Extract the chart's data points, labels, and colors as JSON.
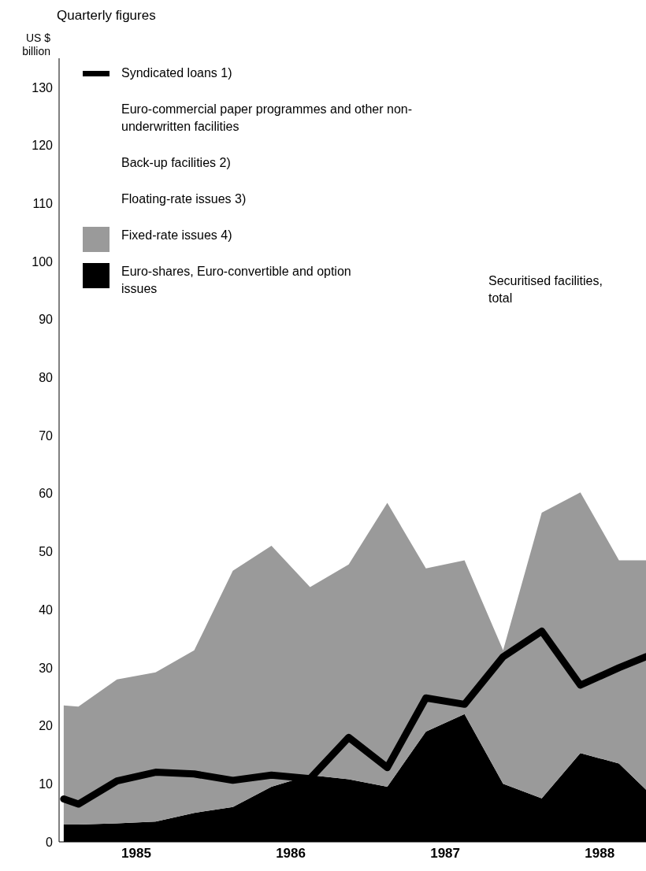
{
  "chart_data": {
    "type": "area",
    "stacked": true,
    "title": "Quarterly figures",
    "ylabel": "US $ billion",
    "x": [
      1985.03,
      1985.125,
      1985.375,
      1985.625,
      1985.875,
      1986.125,
      1986.375,
      1986.625,
      1986.875,
      1987.125,
      1987.375,
      1987.625,
      1987.875,
      1988.125,
      1988.375,
      1988.625,
      1988.8
    ],
    "xlim": [
      1985,
      1988.8
    ],
    "xticks": [
      {
        "value": 1985.5,
        "label": "1985"
      },
      {
        "value": 1986.5,
        "label": "1986"
      },
      {
        "value": 1987.5,
        "label": "1987"
      },
      {
        "value": 1988.5,
        "label": "1988"
      }
    ],
    "ylim": [
      0,
      135
    ],
    "yticks": [
      0,
      10,
      20,
      30,
      40,
      50,
      60,
      70,
      80,
      90,
      100,
      110,
      120,
      130
    ],
    "series": [
      {
        "name": "Syndicated loans 1)",
        "type": "line",
        "color": "#000000",
        "values": [
          7.4,
          6.5,
          10.5,
          12,
          11.7,
          10.6,
          11.5,
          10.9,
          18,
          12.8,
          24.8,
          23.7,
          31.9,
          36.3,
          27,
          30,
          31.9
        ]
      },
      {
        "name": "Euro-shares, Euro-convertible and option issues",
        "color": "#000000",
        "values": [
          3,
          3,
          3.2,
          3.5,
          5,
          6,
          9.5,
          11.5,
          10.8,
          9.5,
          19,
          22,
          10,
          7.5,
          15.3,
          13.5,
          9
        ]
      },
      {
        "name": "Fixed-rate issues 4)",
        "color": "#9a9a9a",
        "values": [
          20.5,
          20.3,
          24.8,
          25.7,
          28,
          40.7,
          41.5,
          32.4,
          37,
          48.9,
          28.1,
          26.5,
          23,
          49.2,
          44.9,
          35,
          39.5
        ]
      },
      {
        "name": "Floating-rate issues 3)",
        "values": [
          null,
          null,
          null,
          null,
          null,
          null,
          null,
          null,
          null,
          null,
          null,
          null,
          null,
          null,
          null,
          null,
          null
        ]
      },
      {
        "name": "Back-up facilities  2)",
        "values": [
          null,
          null,
          null,
          null,
          null,
          null,
          null,
          null,
          null,
          null,
          null,
          null,
          null,
          null,
          null,
          null,
          null
        ]
      },
      {
        "name": "Euro-commercial paper programmes and other non-underwritten facilities",
        "values": [
          null,
          null,
          null,
          null,
          null,
          null,
          null,
          null,
          null,
          null,
          null,
          null,
          null,
          null,
          null,
          null,
          null
        ]
      }
    ],
    "legend": "top left",
    "annotations": [
      "Securitised facilities, total"
    ]
  }
}
